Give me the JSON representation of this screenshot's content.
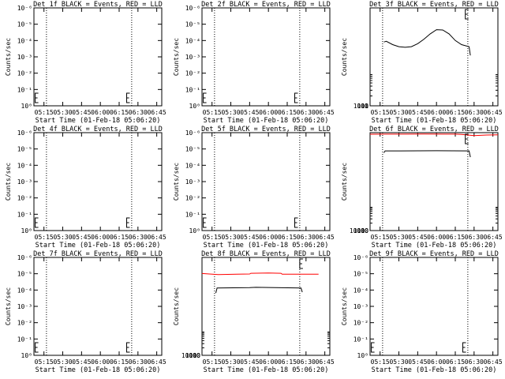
{
  "layout": {
    "rows": 3,
    "cols": 3
  },
  "colors": {
    "events": "#000000",
    "lld": "#ff0000",
    "axis": "#000000",
    "background": "#ffffff"
  },
  "common": {
    "ylabel": "Counts/sec",
    "xlabel": "Start Time (01-Feb-18 05:06:20)",
    "x_ticks": [
      "05:15",
      "05:30",
      "05:45",
      "06:00",
      "06:15",
      "06:30",
      "06:45"
    ],
    "x_range_minutes": [
      "05:07",
      "06:49"
    ],
    "dotted_lines": [
      "05:17",
      "06:25"
    ]
  },
  "chart_data": [
    {
      "type": "line",
      "title": "Det 1f BLACK = Events, RED = LLD",
      "yscale": "log",
      "yticks": [
        "10⁰",
        "10⁻¹",
        "10⁻²",
        "10⁻³",
        "10⁻⁴",
        "10⁻⁵",
        "10⁻⁶"
      ],
      "ylim": [
        0,
        6
      ],
      "series": [],
      "markers": [
        "05:08",
        "06:21"
      ]
    },
    {
      "type": "line",
      "title": "Det 2f BLACK = Events, RED = LLD",
      "yscale": "log",
      "yticks": [
        "10⁰",
        "10⁻¹",
        "10⁻²",
        "10⁻³",
        "10⁻⁴",
        "10⁻⁵",
        "10⁻⁶"
      ],
      "ylim": [
        0,
        6
      ],
      "series": [],
      "markers": [
        "05:08",
        "06:21"
      ]
    },
    {
      "type": "line",
      "title": "Det 3f BLACK = Events, RED = LLD",
      "yscale": "log",
      "yticks": [
        "1",
        "10",
        "100",
        "1000"
      ],
      "ylim": [
        1,
        1000
      ],
      "series": [
        {
          "color": "#000000",
          "points": [
            [
              "05:18",
              90
            ],
            [
              "05:20",
              95
            ],
            [
              "05:25",
              75
            ],
            [
              "05:30",
              65
            ],
            [
              "05:35",
              62
            ],
            [
              "05:40",
              65
            ],
            [
              "05:45",
              80
            ],
            [
              "05:50",
              110
            ],
            [
              "05:55",
              160
            ],
            [
              "06:00",
              215
            ],
            [
              "06:05",
              210
            ],
            [
              "06:10",
              160
            ],
            [
              "06:15",
              100
            ],
            [
              "06:20",
              75
            ],
            [
              "06:26",
              65
            ],
            [
              "06:27",
              35
            ]
          ]
        }
      ],
      "markers": [
        "06:23"
      ]
    },
    {
      "type": "line",
      "title": "Det 4f BLACK = Events, RED = LLD",
      "yscale": "log",
      "yticks": [
        "10⁰",
        "10⁻¹",
        "10⁻²",
        "10⁻³",
        "10⁻⁴",
        "10⁻⁵",
        "10⁻⁶"
      ],
      "ylim": [
        0,
        6
      ],
      "series": [],
      "markers": [
        "05:08",
        "06:21"
      ]
    },
    {
      "type": "line",
      "title": "Det 5f BLACK = Events, RED = LLD",
      "yscale": "log",
      "yticks": [
        "10⁰",
        "10⁻¹",
        "10⁻²",
        "10⁻³",
        "10⁻⁴",
        "10⁻⁵",
        "10⁻⁶"
      ],
      "ylim": [
        0,
        6
      ],
      "series": [],
      "markers": [
        "05:08",
        "06:21"
      ]
    },
    {
      "type": "line",
      "title": "Det 6f BLACK = Events, RED = LLD",
      "yscale": "log",
      "yticks": [
        "10",
        "100",
        "1000",
        "10000"
      ],
      "ylim": [
        1,
        10000
      ],
      "series": [
        {
          "color": "#ff0000",
          "points": [
            [
              "05:07",
              8600
            ],
            [
              "05:20",
              8700
            ],
            [
              "05:35",
              8700
            ],
            [
              "05:50",
              8800
            ],
            [
              "06:05",
              8700
            ],
            [
              "06:15",
              8700
            ],
            [
              "06:20",
              8400
            ],
            [
              "06:30",
              7600
            ],
            [
              "06:40",
              8000
            ],
            [
              "06:49",
              8200
            ]
          ]
        },
        {
          "color": "#000000",
          "points": [
            [
              "05:18",
              1500
            ],
            [
              "05:19",
              1800
            ],
            [
              "05:30",
              1800
            ],
            [
              "06:00",
              1820
            ],
            [
              "06:26",
              1800
            ],
            [
              "06:27",
              1000
            ]
          ]
        }
      ],
      "markers": [
        "06:23"
      ]
    },
    {
      "type": "line",
      "title": "Det 7f BLACK = Events, RED = LLD",
      "yscale": "log",
      "yticks": [
        "10⁰",
        "10⁻¹",
        "10⁻²",
        "10⁻³",
        "10⁻⁴",
        "10⁻⁵",
        "10⁻⁶"
      ],
      "ylim": [
        0,
        6
      ],
      "series": [],
      "markers": [
        "05:08",
        "06:21"
      ]
    },
    {
      "type": "line",
      "title": "Det 8f BLACK = Events, RED = LLD",
      "yscale": "log",
      "yticks": [
        "10",
        "100",
        "1000",
        "10000"
      ],
      "ylim": [
        1,
        10000
      ],
      "series": [
        {
          "color": "#ff0000",
          "points": [
            [
              "05:07",
              2200
            ],
            [
              "05:20",
              2000
            ],
            [
              "05:35",
              2050
            ],
            [
              "05:45",
              2100
            ],
            [
              "05:46",
              2250
            ],
            [
              "06:00",
              2300
            ],
            [
              "06:10",
              2250
            ],
            [
              "06:11",
              2050
            ],
            [
              "06:30",
              2050
            ],
            [
              "06:40",
              2050
            ]
          ]
        },
        {
          "color": "#000000",
          "points": [
            [
              "05:18",
              350
            ],
            [
              "05:19",
              560
            ],
            [
              "05:45",
              580
            ],
            [
              "05:50",
              600
            ],
            [
              "06:26",
              560
            ],
            [
              "06:27",
              380
            ]
          ]
        }
      ],
      "markers": [
        "06:25"
      ]
    },
    {
      "type": "line",
      "title": "Det 9f BLACK = Events, RED = LLD",
      "yscale": "log",
      "yticks": [
        "10⁰",
        "10⁻¹",
        "10⁻²",
        "10⁻³",
        "10⁻⁴",
        "10⁻⁵",
        "10⁻⁶"
      ],
      "ylim": [
        0,
        6
      ],
      "series": [],
      "markers": [
        "05:08",
        "06:21"
      ]
    }
  ]
}
